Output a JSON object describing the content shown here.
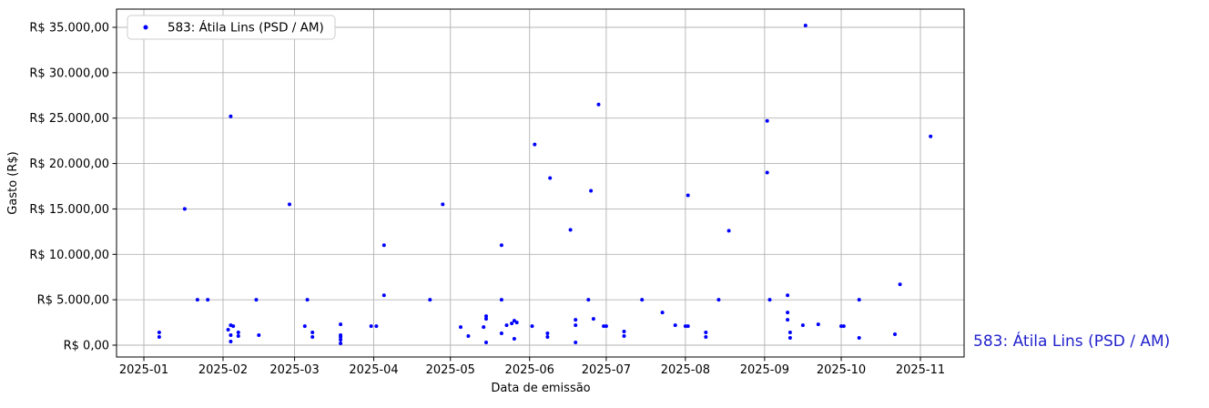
{
  "side_label": {
    "text": "583: Átila Lins (PSD / AM)",
    "color": "#2222cc"
  },
  "chart_data": {
    "type": "scatter",
    "title": "",
    "xlabel": "Data de emissão",
    "ylabel": "Gasto (R$)",
    "legend": [
      {
        "label": "583: Átila Lins (PSD / AM)",
        "marker_color": "#0000ff"
      }
    ],
    "legend_position": "upper left",
    "grid": true,
    "grid_color": "#b3b3b3",
    "spine_color": "#000000",
    "point_color": "#0000ff",
    "x_tick_labels": [
      "2025-01",
      "2025-02",
      "2025-03",
      "2025-04",
      "2025-05",
      "2025-06",
      "2025-07",
      "2025-08",
      "2025-09",
      "2025-10",
      "2025-11"
    ],
    "x_tick_days": [
      0,
      31,
      59,
      90,
      120,
      151,
      181,
      212,
      243,
      273,
      304
    ],
    "y_tick_labels": [
      "R$ 0,00",
      "R$ 5.000,00",
      "R$ 10.000,00",
      "R$ 15.000,00",
      "R$ 20.000,00",
      "R$ 25.000,00",
      "R$ 30.000,00",
      "R$ 35.000,00"
    ],
    "y_tick_values": [
      0,
      5000,
      10000,
      15000,
      20000,
      25000,
      30000,
      35000
    ],
    "x_domain_days_from_2025_01_01": [
      -10.7,
      321.1
    ],
    "y_domain": [
      -1304,
      37006
    ],
    "points_day_value": [
      [
        6,
        1400
      ],
      [
        6,
        900
      ],
      [
        16,
        15000
      ],
      [
        21,
        5000
      ],
      [
        25,
        5000
      ],
      [
        33,
        1700
      ],
      [
        34,
        1100
      ],
      [
        34,
        400
      ],
      [
        34,
        2200
      ],
      [
        35,
        2100
      ],
      [
        34,
        25200
      ],
      [
        37,
        1400
      ],
      [
        37,
        1000
      ],
      [
        44,
        5000
      ],
      [
        45,
        1100
      ],
      [
        57,
        15500
      ],
      [
        63,
        2100
      ],
      [
        64,
        5000
      ],
      [
        66,
        1400
      ],
      [
        66,
        900
      ],
      [
        77,
        2300
      ],
      [
        77,
        1100
      ],
      [
        77,
        900
      ],
      [
        77,
        600
      ],
      [
        77,
        200
      ],
      [
        89,
        2100
      ],
      [
        91,
        2100
      ],
      [
        94,
        11000
      ],
      [
        94,
        5500
      ],
      [
        112,
        5000
      ],
      [
        117,
        15500
      ],
      [
        124,
        2000
      ],
      [
        127,
        1000
      ],
      [
        133,
        2000
      ],
      [
        134,
        3200
      ],
      [
        134,
        2900
      ],
      [
        134,
        300
      ],
      [
        140,
        1300
      ],
      [
        140,
        5000
      ],
      [
        140,
        11000
      ],
      [
        142,
        2200
      ],
      [
        144,
        2400
      ],
      [
        145,
        2700
      ],
      [
        146,
        2500
      ],
      [
        145,
        700
      ],
      [
        152,
        2100
      ],
      [
        153,
        22100
      ],
      [
        158,
        1300
      ],
      [
        158,
        900
      ],
      [
        159,
        18400
      ],
      [
        167,
        12700
      ],
      [
        169,
        2800
      ],
      [
        169,
        2200
      ],
      [
        169,
        300
      ],
      [
        174,
        5000
      ],
      [
        175,
        17000
      ],
      [
        176,
        2900
      ],
      [
        178,
        26500
      ],
      [
        180,
        2100
      ],
      [
        181,
        2100
      ],
      [
        188,
        1500
      ],
      [
        188,
        1000
      ],
      [
        195,
        5000
      ],
      [
        203,
        3600
      ],
      [
        208,
        2200
      ],
      [
        212,
        2100
      ],
      [
        213,
        2100
      ],
      [
        213,
        16500
      ],
      [
        220,
        1400
      ],
      [
        220,
        900
      ],
      [
        225,
        5000
      ],
      [
        229,
        12600
      ],
      [
        244,
        24700
      ],
      [
        244,
        19000
      ],
      [
        245,
        5000
      ],
      [
        252,
        5500
      ],
      [
        252,
        3600
      ],
      [
        252,
        2800
      ],
      [
        253,
        1400
      ],
      [
        253,
        800
      ],
      [
        258,
        2200
      ],
      [
        259,
        35200
      ],
      [
        264,
        2300
      ],
      [
        273,
        2100
      ],
      [
        274,
        2100
      ],
      [
        280,
        5000
      ],
      [
        280,
        800
      ],
      [
        294,
        1200
      ],
      [
        296,
        6700
      ],
      [
        308,
        23000
      ]
    ]
  }
}
